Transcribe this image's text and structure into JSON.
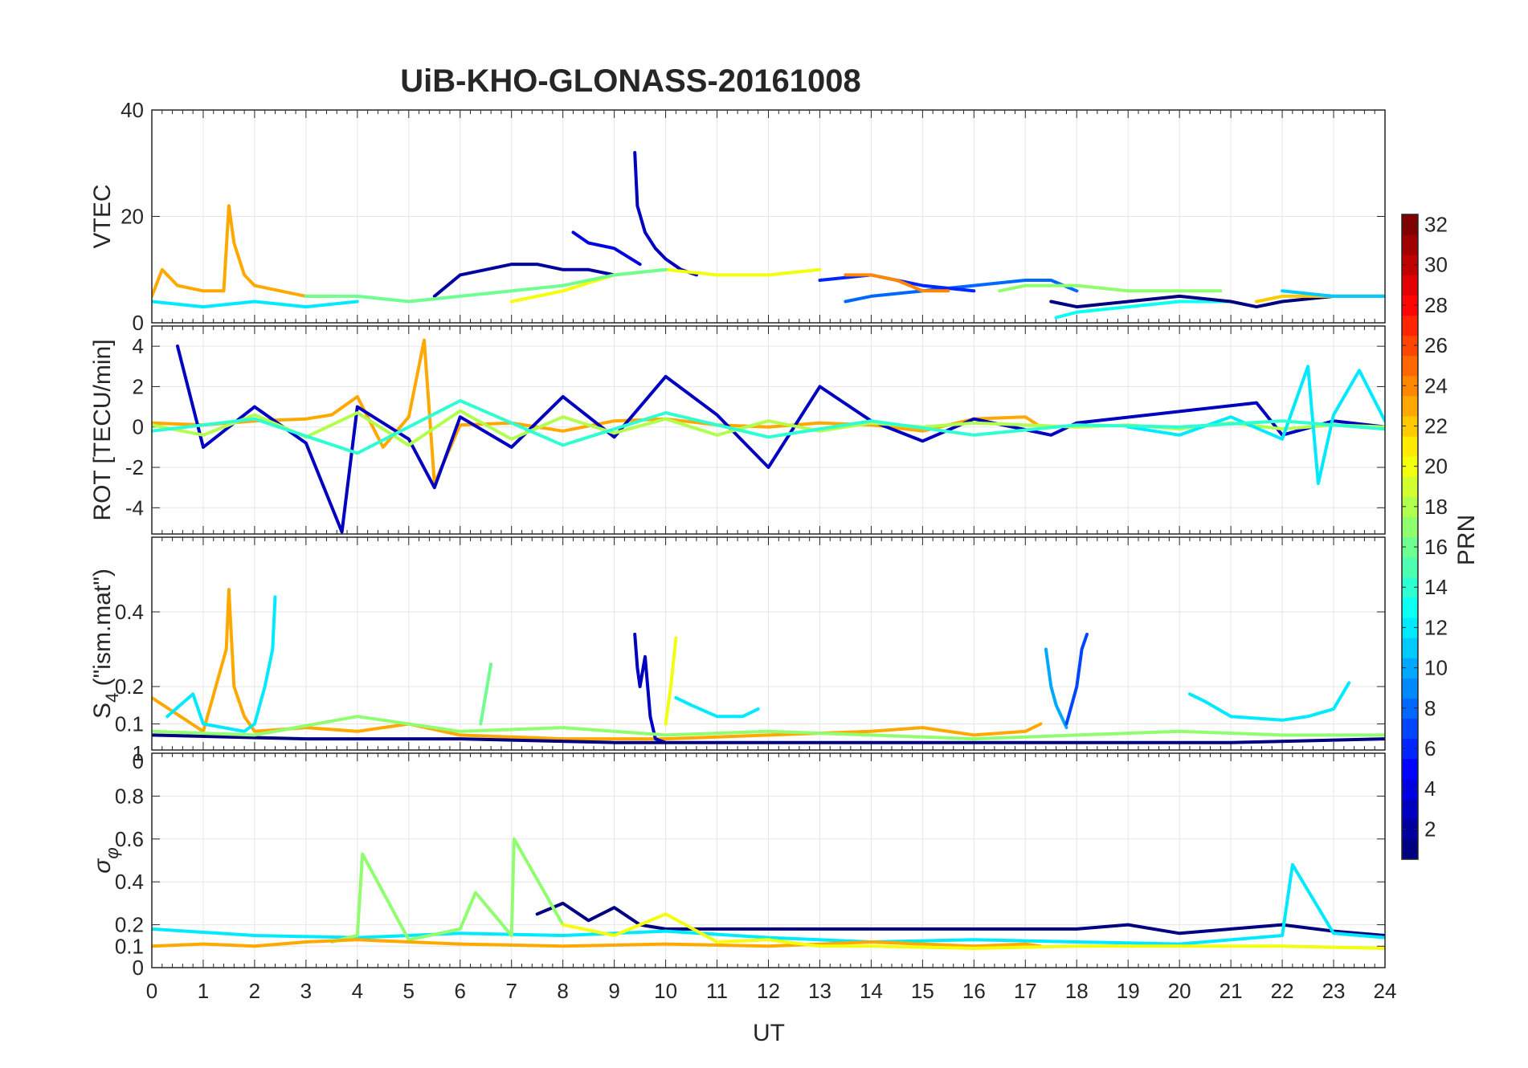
{
  "chart_data": {
    "type": "line",
    "title": "UiB-KHO-GLONASS-20161008",
    "xlabel": "UT",
    "xlim": [
      0,
      24
    ],
    "xticks": [
      "0",
      "1",
      "2",
      "3",
      "4",
      "5",
      "6",
      "7",
      "8",
      "9",
      "10",
      "11",
      "12",
      "13",
      "14",
      "15",
      "16",
      "17",
      "18",
      "19",
      "20",
      "21",
      "22",
      "23",
      "24"
    ],
    "grid": true,
    "colorbar": {
      "label": "PRN",
      "colormap": "jet",
      "range": [
        1,
        32
      ],
      "ticks": [
        "2",
        "4",
        "6",
        "8",
        "10",
        "12",
        "14",
        "16",
        "18",
        "20",
        "22",
        "24",
        "26",
        "28",
        "30",
        "32"
      ]
    },
    "panels": [
      {
        "id": "vtec",
        "ylabel": "VTEC",
        "ylim": [
          0,
          40
        ],
        "yticks": [
          "0",
          "20",
          "40"
        ],
        "series": [
          {
            "prn": 23,
            "x": [
              0.0,
              0.2,
              0.5,
              1.0,
              1.4,
              1.5,
              1.6,
              1.8,
              2.0,
              2.5,
              3.0,
              3.5
            ],
            "y": [
              5,
              10,
              7,
              6,
              6,
              22,
              15,
              9,
              7,
              6,
              5,
              5
            ]
          },
          {
            "prn": 4,
            "x": [
              8.2,
              8.5,
              9.0,
              9.5
            ],
            "y": [
              17,
              15,
              14,
              11
            ]
          },
          {
            "prn": 3,
            "x": [
              9.4,
              9.45,
              9.6,
              9.8,
              10.0,
              10.3,
              10.6
            ],
            "y": [
              32,
              22,
              17,
              14,
              12,
              10,
              9
            ]
          },
          {
            "prn": 2,
            "x": [
              5.5,
              6.0,
              6.5,
              7.0,
              7.5,
              8.0,
              8.5,
              9.0
            ],
            "y": [
              5,
              9,
              10,
              11,
              11,
              10,
              10,
              9
            ]
          },
          {
            "prn": 20,
            "x": [
              7.0,
              8.0,
              9.0,
              10.0,
              11.0,
              12.0,
              13.0
            ],
            "y": [
              4,
              6,
              9,
              10,
              9,
              9,
              10
            ]
          },
          {
            "prn": 16,
            "x": [
              3.0,
              4.0,
              5.0,
              6.0,
              7.0,
              8.0,
              9.0,
              10.0
            ],
            "y": [
              5,
              5,
              4,
              5,
              6,
              7,
              9,
              10
            ]
          },
          {
            "prn": 8,
            "x": [
              13.5,
              14.0,
              15.0,
              16.0,
              17.0,
              17.5,
              18.0
            ],
            "y": [
              4,
              5,
              6,
              7,
              8,
              8,
              6
            ]
          },
          {
            "prn": 13,
            "x": [
              17.6,
              18.0,
              19.0,
              20.0,
              21.0
            ],
            "y": [
              1,
              2,
              3,
              4,
              4
            ]
          },
          {
            "prn": 17,
            "x": [
              16.5,
              17.0,
              18.0,
              19.0,
              20.0,
              20.8
            ],
            "y": [
              6,
              7,
              7,
              6,
              6,
              6
            ]
          },
          {
            "prn": 1,
            "x": [
              17.5,
              18.0,
              19.0,
              20.0,
              21.0,
              21.5,
              22.0,
              23.0,
              24.0
            ],
            "y": [
              4,
              3,
              4,
              5,
              4,
              3,
              4,
              5,
              5
            ]
          },
          {
            "prn": 12,
            "x": [
              0.0,
              1.0,
              2.0,
              3.0,
              4.0
            ],
            "y": [
              4,
              3,
              4,
              3,
              4
            ]
          },
          {
            "prn": 22,
            "x": [
              21.5,
              22.0,
              23.0,
              24.0
            ],
            "y": [
              4,
              5,
              5,
              5
            ]
          },
          {
            "prn": 6,
            "x": [
              13.0,
              14.0,
              15.0,
              16.0
            ],
            "y": [
              8,
              9,
              7,
              6
            ]
          },
          {
            "prn": 24,
            "x": [
              13.5,
              14.0,
              14.5,
              15.0,
              15.5
            ],
            "y": [
              9,
              9,
              8,
              6,
              6
            ]
          },
          {
            "prn": 11,
            "x": [
              22.0,
              23.0,
              24.0
            ],
            "y": [
              6,
              5,
              5
            ]
          }
        ]
      },
      {
        "id": "rot",
        "ylabel": "ROT [TECU/min]",
        "ylim": [
          -5.3,
          5.0
        ],
        "yticks": [
          "-4",
          "-2",
          "0",
          "2",
          "4"
        ],
        "series": [
          {
            "prn": 23,
            "x": [
              0.0,
              1.0,
              2.0,
              3.0,
              3.5,
              4.0,
              4.5,
              5.0,
              5.3,
              5.5,
              6.0,
              7.0,
              8.0,
              9.0,
              10.0,
              11.0,
              12.0,
              13.0,
              14.0,
              15.0,
              16.0,
              17.0,
              17.3
            ],
            "y": [
              0.2,
              0.1,
              0.3,
              0.4,
              0.6,
              1.5,
              -1.0,
              0.5,
              4.3,
              -2.8,
              0.1,
              0.2,
              -0.2,
              0.3,
              0.4,
              0.1,
              0.0,
              0.2,
              0.1,
              -0.2,
              0.4,
              0.5,
              0.0
            ]
          },
          {
            "prn": 3,
            "x": [
              0.5,
              1.0,
              2.0,
              3.0,
              3.7,
              4.0,
              5.0,
              5.5,
              6.0,
              7.0,
              8.0,
              9.0,
              10.0,
              11.0,
              12.0,
              13.0,
              14.0,
              15.0,
              16.0,
              17.5,
              18.0,
              21.5,
              22.0,
              23.0,
              24.0
            ],
            "y": [
              4.0,
              -1.0,
              1.0,
              -0.8,
              -5.2,
              1.0,
              -0.6,
              -3.0,
              0.5,
              -1.0,
              1.5,
              -0.5,
              2.5,
              0.6,
              -2.0,
              2.0,
              0.3,
              -0.7,
              0.4,
              -0.4,
              0.2,
              1.2,
              -0.4,
              0.3,
              0.0
            ]
          },
          {
            "prn": 18,
            "x": [
              0.0,
              1.0,
              2.0,
              3.0,
              4.0,
              5.0,
              6.0,
              7.0,
              8.0,
              9.0,
              10.0,
              11.0,
              12.0,
              13.0,
              14.0,
              15.0,
              16.0,
              17.0,
              18.0,
              19.0,
              20.0,
              21.0,
              22.0,
              23.0,
              24.0
            ],
            "y": [
              0.1,
              -0.4,
              0.6,
              -0.5,
              0.7,
              -0.9,
              0.8,
              -0.6,
              0.5,
              -0.3,
              0.4,
              -0.4,
              0.3,
              -0.2,
              0.2,
              0.0,
              0.2,
              0.1,
              0.0,
              0.1,
              -0.1,
              0.2,
              -0.1,
              0.1,
              0.0
            ]
          },
          {
            "prn": 12,
            "x": [
              19.0,
              20.0,
              21.0,
              22.0,
              22.5,
              22.7,
              23.0,
              23.5,
              24.0
            ],
            "y": [
              0.0,
              -0.4,
              0.5,
              -0.6,
              3.0,
              -2.8,
              0.6,
              2.8,
              0.3
            ]
          },
          {
            "prn": 14,
            "x": [
              0.0,
              2.0,
              4.0,
              6.0,
              8.0,
              10.0,
              12.0,
              14.0,
              16.0,
              18.0,
              20.0,
              22.0,
              24.0
            ],
            "y": [
              -0.2,
              0.4,
              -1.3,
              1.3,
              -0.9,
              0.7,
              -0.5,
              0.3,
              -0.4,
              0.1,
              0.0,
              0.3,
              -0.1
            ]
          }
        ]
      },
      {
        "id": "s4",
        "ylabel": "S4 (\"ism.mat\")",
        "ylabel_main": "S",
        "ylabel_sub": "4",
        "ylabel_rest": " (\"ism.mat\")",
        "ylim": [
          0.03,
          0.6
        ],
        "yticks": [
          "0",
          "0.1",
          "0.2",
          "0.4"
        ],
        "series": [
          {
            "prn": 23,
            "x": [
              0.0,
              1.0,
              1.45,
              1.5,
              1.6,
              1.8,
              2.0,
              3.0,
              4.0,
              5.0,
              6.0,
              8.0,
              10.0,
              12.0,
              14.0,
              15.0,
              16.0,
              17.0,
              17.3
            ],
            "y": [
              0.17,
              0.08,
              0.3,
              0.46,
              0.2,
              0.12,
              0.08,
              0.09,
              0.08,
              0.1,
              0.07,
              0.06,
              0.06,
              0.07,
              0.08,
              0.09,
              0.07,
              0.08,
              0.1
            ]
          },
          {
            "prn": 12,
            "x": [
              0.3,
              0.8,
              1.0,
              1.8,
              2.0,
              2.2,
              2.35,
              2.4
            ],
            "y": [
              0.12,
              0.18,
              0.1,
              0.08,
              0.1,
              0.2,
              0.3,
              0.44
            ]
          },
          {
            "prn": 3,
            "x": [
              9.4,
              9.45,
              9.5,
              9.6,
              9.7,
              9.8,
              10.0
            ],
            "y": [
              0.34,
              0.25,
              0.2,
              0.28,
              0.12,
              0.06,
              0.05
            ]
          },
          {
            "prn": 20,
            "x": [
              10.0,
              10.1,
              10.2
            ],
            "y": [
              0.1,
              0.2,
              0.33
            ]
          },
          {
            "prn": 12,
            "x": [
              10.2,
              10.5,
              11.0,
              11.5,
              11.8
            ],
            "y": [
              0.17,
              0.15,
              0.12,
              0.12,
              0.14
            ]
          },
          {
            "prn": 10,
            "x": [
              17.4,
              17.5,
              17.6,
              17.8
            ],
            "y": [
              0.3,
              0.2,
              0.15,
              0.09
            ]
          },
          {
            "prn": 7,
            "x": [
              17.8,
              18.0,
              18.1,
              18.2
            ],
            "y": [
              0.1,
              0.2,
              0.3,
              0.34
            ]
          },
          {
            "prn": 12,
            "x": [
              20.2,
              20.5,
              21.0,
              22.0,
              22.5,
              23.0,
              23.3
            ],
            "y": [
              0.18,
              0.16,
              0.12,
              0.11,
              0.12,
              0.14,
              0.21
            ]
          },
          {
            "prn": 16,
            "x": [
              6.4,
              6.5,
              6.6
            ],
            "y": [
              0.1,
              0.18,
              0.26
            ]
          },
          {
            "prn": 1,
            "x": [
              0.0,
              3.0,
              6.0,
              9.0,
              12.0,
              15.0,
              18.0,
              21.0,
              24.0
            ],
            "y": [
              0.07,
              0.06,
              0.06,
              0.05,
              0.05,
              0.05,
              0.05,
              0.05,
              0.06
            ]
          },
          {
            "prn": 17,
            "x": [
              0.0,
              2.0,
              4.0,
              6.0,
              8.0,
              10.0,
              12.0,
              14.0,
              16.0,
              18.0,
              20.0,
              22.0,
              24.0
            ],
            "y": [
              0.08,
              0.07,
              0.12,
              0.08,
              0.09,
              0.07,
              0.08,
              0.07,
              0.06,
              0.07,
              0.08,
              0.07,
              0.07
            ]
          }
        ]
      },
      {
        "id": "sigma",
        "ylabel": "σφ",
        "ylabel_main": "σ",
        "ylabel_sub": "φ",
        "ylim": [
          0,
          1
        ],
        "yticks": [
          "0",
          "0.1",
          "0.2",
          "0.4",
          "0.6",
          "0.8",
          "1"
        ],
        "series": [
          {
            "prn": 1,
            "x": [
              7.5,
              8.0,
              8.5,
              9.0,
              9.5,
              10.0,
              18.0,
              19.0,
              20.0,
              21.0,
              22.0,
              23.0,
              24.0
            ],
            "y": [
              0.25,
              0.3,
              0.22,
              0.28,
              0.2,
              0.18,
              0.18,
              0.2,
              0.16,
              0.18,
              0.2,
              0.17,
              0.15
            ]
          },
          {
            "prn": 12,
            "x": [
              0.0,
              2.0,
              4.0,
              6.0,
              8.0,
              10.0,
              12.0,
              14.0,
              16.0,
              18.0,
              20.0,
              22.0,
              22.2,
              23.0,
              24.0
            ],
            "y": [
              0.18,
              0.15,
              0.14,
              0.16,
              0.15,
              0.17,
              0.14,
              0.12,
              0.13,
              0.12,
              0.11,
              0.15,
              0.48,
              0.16,
              0.14
            ]
          },
          {
            "prn": 17,
            "x": [
              3.5,
              4.0,
              4.1,
              5.0,
              6.0,
              6.3,
              7.0,
              7.05,
              8.0
            ],
            "y": [
              0.12,
              0.15,
              0.53,
              0.13,
              0.18,
              0.35,
              0.15,
              0.6,
              0.2
            ]
          },
          {
            "prn": 23,
            "x": [
              0.0,
              1.0,
              2.0,
              3.0,
              4.0,
              5.0,
              6.0,
              8.0,
              10.0,
              12.0,
              14.0,
              16.0,
              17.0,
              17.3
            ],
            "y": [
              0.1,
              0.11,
              0.1,
              0.12,
              0.13,
              0.12,
              0.11,
              0.1,
              0.11,
              0.1,
              0.12,
              0.1,
              0.11,
              0.1
            ]
          },
          {
            "prn": 20,
            "x": [
              8.0,
              9.0,
              10.0,
              11.0,
              12.0,
              13.0,
              14.0,
              16.0,
              18.0,
              20.0,
              22.0,
              24.0
            ],
            "y": [
              0.2,
              0.15,
              0.25,
              0.12,
              0.13,
              0.1,
              0.1,
              0.09,
              0.1,
              0.1,
              0.1,
              0.09
            ]
          }
        ]
      }
    ]
  }
}
